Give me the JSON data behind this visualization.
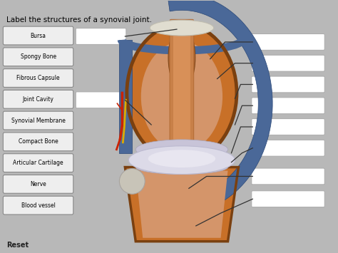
{
  "title": "Label the structures of a synovial joint.",
  "title_fontsize": 7.5,
  "bg_color": "#b8b8b8",
  "panel_color": "#d0cec8",
  "left_labels": [
    "Bursa",
    "Spongy Bone",
    "Fibrous Capsule",
    "Joint Cavity",
    "Synovial Membrane",
    "Compact Bone",
    "Articular Cartilage",
    "Nerve",
    "Blood vessel"
  ],
  "reset_label": "Reset",
  "anatomy": {
    "outer_shell_color": "#c87028",
    "outer_shell_dark": "#a85818",
    "spongy_inner_color": "#d4956a",
    "spongy_dot_color": "#8b4513",
    "blue_capsule_color": "#4a6898",
    "blue_capsule_dark": "#2a4878",
    "cartilage_color": "#c8c0d0",
    "synovial_color": "#d8d0e0",
    "bursa_color": "#e8e4d8",
    "compact_rim_color": "#7a4010",
    "nerve_red": "#cc2200",
    "nerve_yellow": "#ddaa00",
    "tendon_color": "#c8a060",
    "background_cream": "#e8e0d0"
  }
}
